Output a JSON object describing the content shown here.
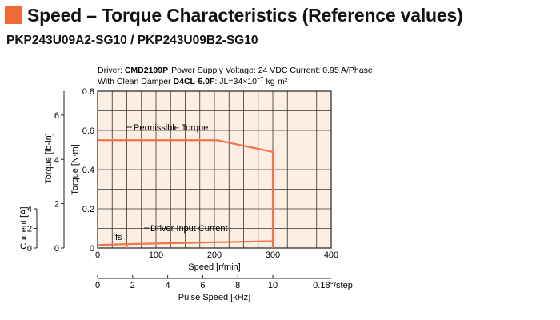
{
  "header": {
    "title": "Speed – Torque Characteristics (Reference values)",
    "subtitle": "PKP243U09A2-SG10 / PKP243U09B2-SG10"
  },
  "conditions": {
    "driver_label": "Driver: ",
    "driver_model": "CMD2109P",
    "supply_text": "Power Supply Voltage: 24 VDC  Current: 0.95 A/Phase",
    "damper_label": "With Clean Damper ",
    "damper_model": "D4CL-5.0F",
    "inertia_text": ": JL=34×10",
    "inertia_exp": "−7",
    "inertia_unit": " kg·m²"
  },
  "colors": {
    "accent": "#ef6a35",
    "curve": "#f0764a",
    "plot_bg": "#fdeee4",
    "grid": "#333333"
  },
  "chart_data": {
    "type": "line",
    "x_label": "Speed [r/min]",
    "x_range": [
      0,
      400
    ],
    "x_ticks": [
      0,
      100,
      200,
      300,
      400
    ],
    "y_label": "Torque [N·m]",
    "y_range": [
      0,
      0.8
    ],
    "y_ticks": [
      0,
      0.2,
      0.4,
      0.6,
      0.8
    ],
    "y_tick_labels": [
      "0",
      "0.2",
      "0.4",
      "0.6",
      "0.8"
    ],
    "y2_label": "Torque [lb-in]",
    "y2_range_lbin": [
      0,
      7.08
    ],
    "y2_ticks": [
      0,
      2,
      4,
      6
    ],
    "current_label": "Current [A]",
    "current_range": [
      0,
      4
    ],
    "current_ticks": [
      0,
      2,
      4
    ],
    "pulse_label": "Pulse Speed [kHz]",
    "pulse_range": [
      0,
      13.33
    ],
    "pulse_ticks": [
      0,
      2,
      4,
      6,
      8,
      10
    ],
    "step_label": "0.18°/step",
    "grid": true,
    "series": [
      {
        "name": "Permissible Torque",
        "x": [
          0,
          205,
          300,
          300
        ],
        "y": [
          0.55,
          0.55,
          0.49,
          0
        ]
      },
      {
        "name": "Driver Input Current",
        "x": [
          0,
          50,
          300
        ],
        "current": [
          0.3,
          0.4,
          0.7
        ]
      }
    ],
    "annotations": [
      {
        "text": "fs",
        "x": 50
      }
    ]
  }
}
